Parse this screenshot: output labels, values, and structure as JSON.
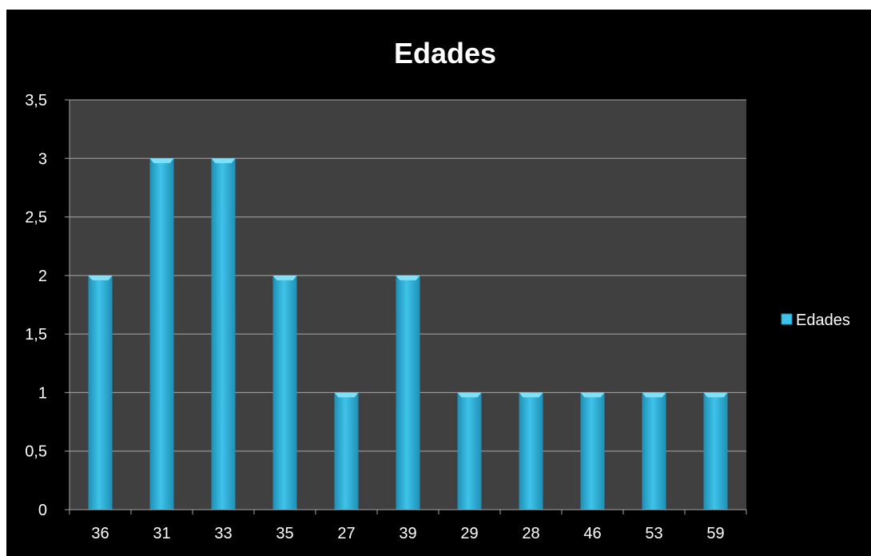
{
  "chart_data": {
    "type": "bar",
    "title": "Edades",
    "categories": [
      "36",
      "31",
      "33",
      "35",
      "27",
      "39",
      "29",
      "28",
      "46",
      "53",
      "59"
    ],
    "series": [
      {
        "name": "Edades",
        "values": [
          2,
          3,
          3,
          2,
          1,
          2,
          1,
          1,
          1,
          1,
          1
        ]
      }
    ],
    "ylim": [
      0,
      3.5
    ],
    "yticks": [
      "0",
      "0,5",
      "1",
      "1,5",
      "2",
      "2,5",
      "3",
      "3,5"
    ],
    "xlabel": "",
    "ylabel": "",
    "grid": true,
    "legend_position": "right",
    "colors": {
      "background": "#000000",
      "plot_area": "#404040",
      "bar": "#3ec3ea",
      "bar_light": "#7fe0f8",
      "bar_dark": "#1f8fb5",
      "gridline": "#a6a6a6",
      "text": "#ffffff"
    }
  }
}
